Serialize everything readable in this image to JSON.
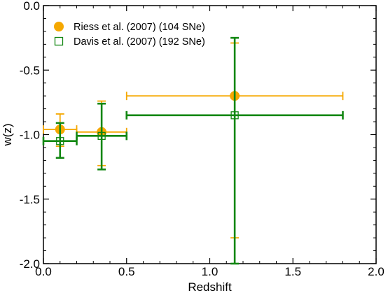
{
  "chart_data": {
    "type": "scatter",
    "xlabel": "Redshift",
    "ylabel": "w(z)",
    "xlim": [
      0.0,
      2.0
    ],
    "ylim": [
      -2.0,
      0.0
    ],
    "x_ticks": [
      "0.0",
      "0.5",
      "1.0",
      "1.5",
      "2.0"
    ],
    "y_ticks": [
      "0.0",
      "-0.5",
      "-1.0",
      "-1.5",
      "-2.0"
    ],
    "grid": false,
    "legend_position": "top-left",
    "series": [
      {
        "name": "Riess et al. (2007) (104 SNe)",
        "color": "#f5a800",
        "marker": "filled-circle",
        "points": [
          {
            "x": 0.1,
            "y": -0.96,
            "xlo": 0.0,
            "xhi": 0.2,
            "ylo": -1.09,
            "yhi": -0.84
          },
          {
            "x": 0.35,
            "y": -0.98,
            "xlo": 0.2,
            "xhi": 0.5,
            "ylo": -1.24,
            "yhi": -0.74
          },
          {
            "x": 1.15,
            "y": -0.7,
            "xlo": 0.5,
            "xhi": 1.8,
            "ylo": -1.8,
            "yhi": -0.29
          }
        ]
      },
      {
        "name": "Davis et al. (2007) (192 SNe)",
        "color": "#128712",
        "marker": "open-square",
        "points": [
          {
            "x": 0.1,
            "y": -1.05,
            "xlo": 0.0,
            "xhi": 0.2,
            "ylo": -1.18,
            "yhi": -0.91
          },
          {
            "x": 0.35,
            "y": -1.01,
            "xlo": 0.2,
            "xhi": 0.5,
            "ylo": -1.27,
            "yhi": -0.76
          },
          {
            "x": 1.15,
            "y": -0.85,
            "xlo": 0.5,
            "xhi": 1.8,
            "ylo": -2.0,
            "yhi": -0.25
          }
        ]
      }
    ]
  }
}
